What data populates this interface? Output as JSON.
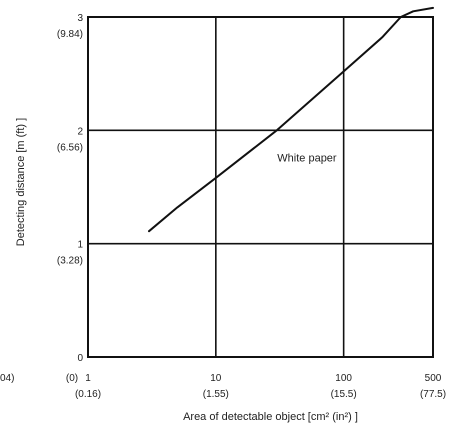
{
  "chart_data": {
    "type": "line",
    "x_scale": "log",
    "xlim": [
      1,
      500
    ],
    "ylim": [
      0,
      3
    ],
    "grid": true,
    "xlabel": "Area of detectable object [cm² (in²) ]",
    "ylabel": "Detecting distance [m (ft) ]",
    "x_ticks": [
      {
        "value": 1,
        "label": "1",
        "sublabel": "(0.16)"
      },
      {
        "value": 10,
        "label": "10",
        "sublabel": "(1.55)"
      },
      {
        "value": 100,
        "label": "100",
        "sublabel": "(15.5)"
      },
      {
        "value": 500,
        "label": "500",
        "sublabel": "(77.5)"
      }
    ],
    "x_origin_label": "(0)",
    "y_ticks": [
      {
        "value": 0,
        "label": "0",
        "sublabel": ""
      },
      {
        "value": 1,
        "label": "1",
        "sublabel": "(3.28)"
      },
      {
        "value": 2,
        "label": "2",
        "sublabel": "(6.56)"
      },
      {
        "value": 3,
        "label": "3",
        "sublabel": "(9.84)"
      }
    ],
    "series": [
      {
        "name": "White paper",
        "color": "#111111",
        "points": [
          {
            "x": 3,
            "y": 1.11
          },
          {
            "x": 5,
            "y": 1.32
          },
          {
            "x": 10,
            "y": 1.58
          },
          {
            "x": 30,
            "y": 2.0
          },
          {
            "x": 100,
            "y": 2.52
          },
          {
            "x": 200,
            "y": 2.82
          },
          {
            "x": 280,
            "y": 3.0
          },
          {
            "x": 350,
            "y": 3.05
          },
          {
            "x": 500,
            "y": 3.08
          }
        ]
      }
    ],
    "annotations": [
      {
        "text": "White paper",
        "x": 60,
        "y": 1.76
      }
    ],
    "edge_fragments": [
      "04)"
    ]
  }
}
